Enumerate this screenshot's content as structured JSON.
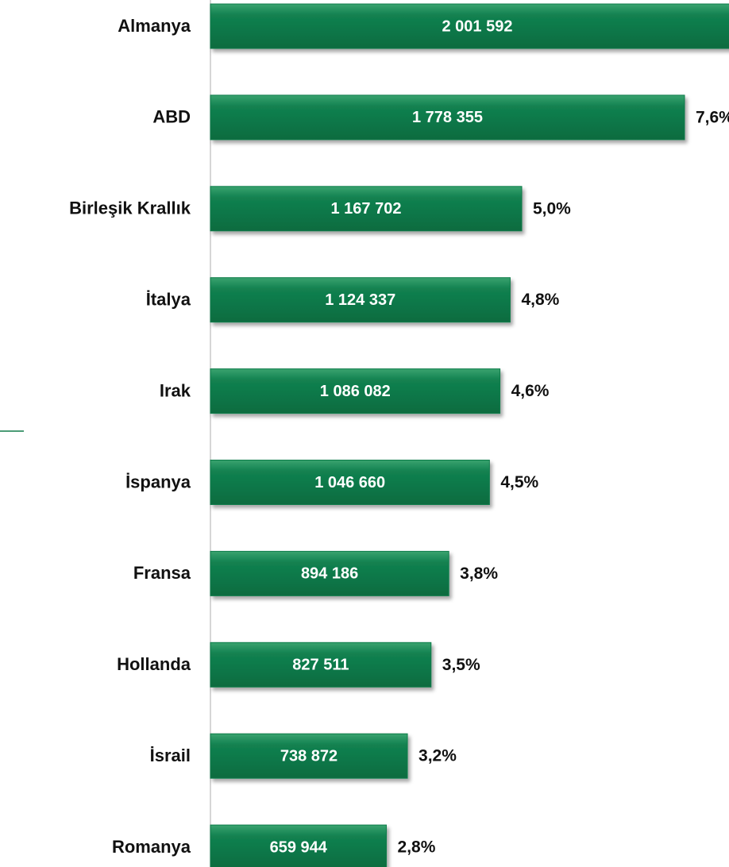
{
  "chart_data": {
    "type": "bar",
    "orientation": "horizontal",
    "categories": [
      "Almanya",
      "ABD",
      "Birleşik Krallık",
      "İtalya",
      "Irak",
      "İspanya",
      "Fransa",
      "Hollanda",
      "İsrail",
      "Romanya"
    ],
    "values": [
      2001592,
      1778355,
      1167702,
      1124337,
      1086082,
      1046660,
      894186,
      827511,
      738872,
      659944
    ],
    "value_labels": [
      "2 001 592",
      "1 778 355",
      "1 167 702",
      "1 124 337",
      "1 086 082",
      "1 046 660",
      "894 186",
      "827 511",
      "738 872",
      "659 944"
    ],
    "share_labels": [
      null,
      "7,6%",
      "5,0%",
      "4,8%",
      "4,6%",
      "4,5%",
      "3,8%",
      "3,5%",
      "3,2%",
      "2,8%"
    ],
    "color": "#107c4a",
    "xlim": [
      0,
      2000000
    ]
  }
}
